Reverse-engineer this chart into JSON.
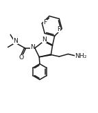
{
  "bg_color": "#ffffff",
  "line_color": "#1a1a1a",
  "line_width": 1.1,
  "font_size": 6.2,
  "figsize": [
    1.43,
    1.64
  ],
  "dpi": 100,
  "xlim": [
    0,
    10
  ],
  "ylim": [
    0,
    11.5
  ]
}
